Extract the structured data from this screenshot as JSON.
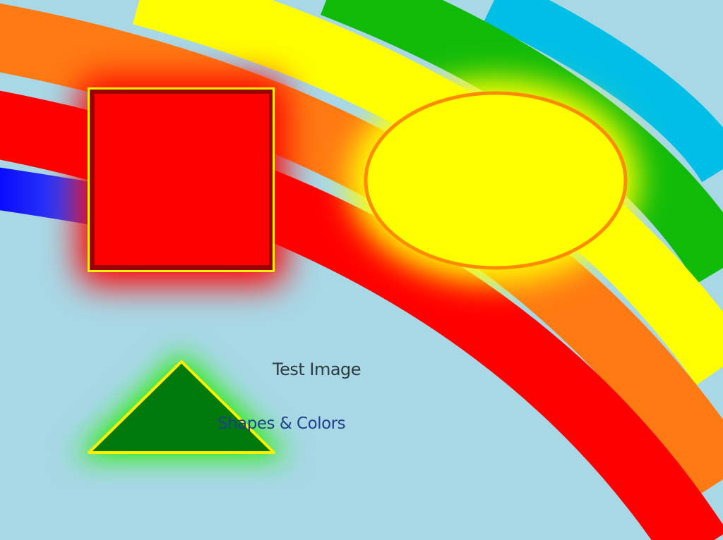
{
  "scene": {
    "background": "#a8d8e6",
    "title": "Test Image",
    "subtitle": "Shapes & Colors",
    "rainbow_bands": [
      {
        "name": "cyan",
        "color": "#00bfe6"
      },
      {
        "name": "green",
        "color": "#10bb08"
      },
      {
        "name": "yellow",
        "color": "#ffff00"
      },
      {
        "name": "orange",
        "color": "#ff7a12"
      },
      {
        "name": "red",
        "color": "#ff0000"
      },
      {
        "name": "blue",
        "color": "#0000ff"
      }
    ],
    "shapes": [
      {
        "name": "square",
        "fill": "#ff0000",
        "border": "#990000",
        "outline": "#ffee00",
        "glow": "#ff0000"
      },
      {
        "name": "ellipse",
        "fill": "#ffff00",
        "border": "#ff8c00",
        "glow": "#ffff00"
      },
      {
        "name": "triangle",
        "fill": "#007a0b",
        "border": "#ffee00",
        "glow": "#22ee00"
      }
    ],
    "colors": {
      "title_text": "#2d3b40",
      "subtitle_text": "#1e3e8e"
    }
  }
}
